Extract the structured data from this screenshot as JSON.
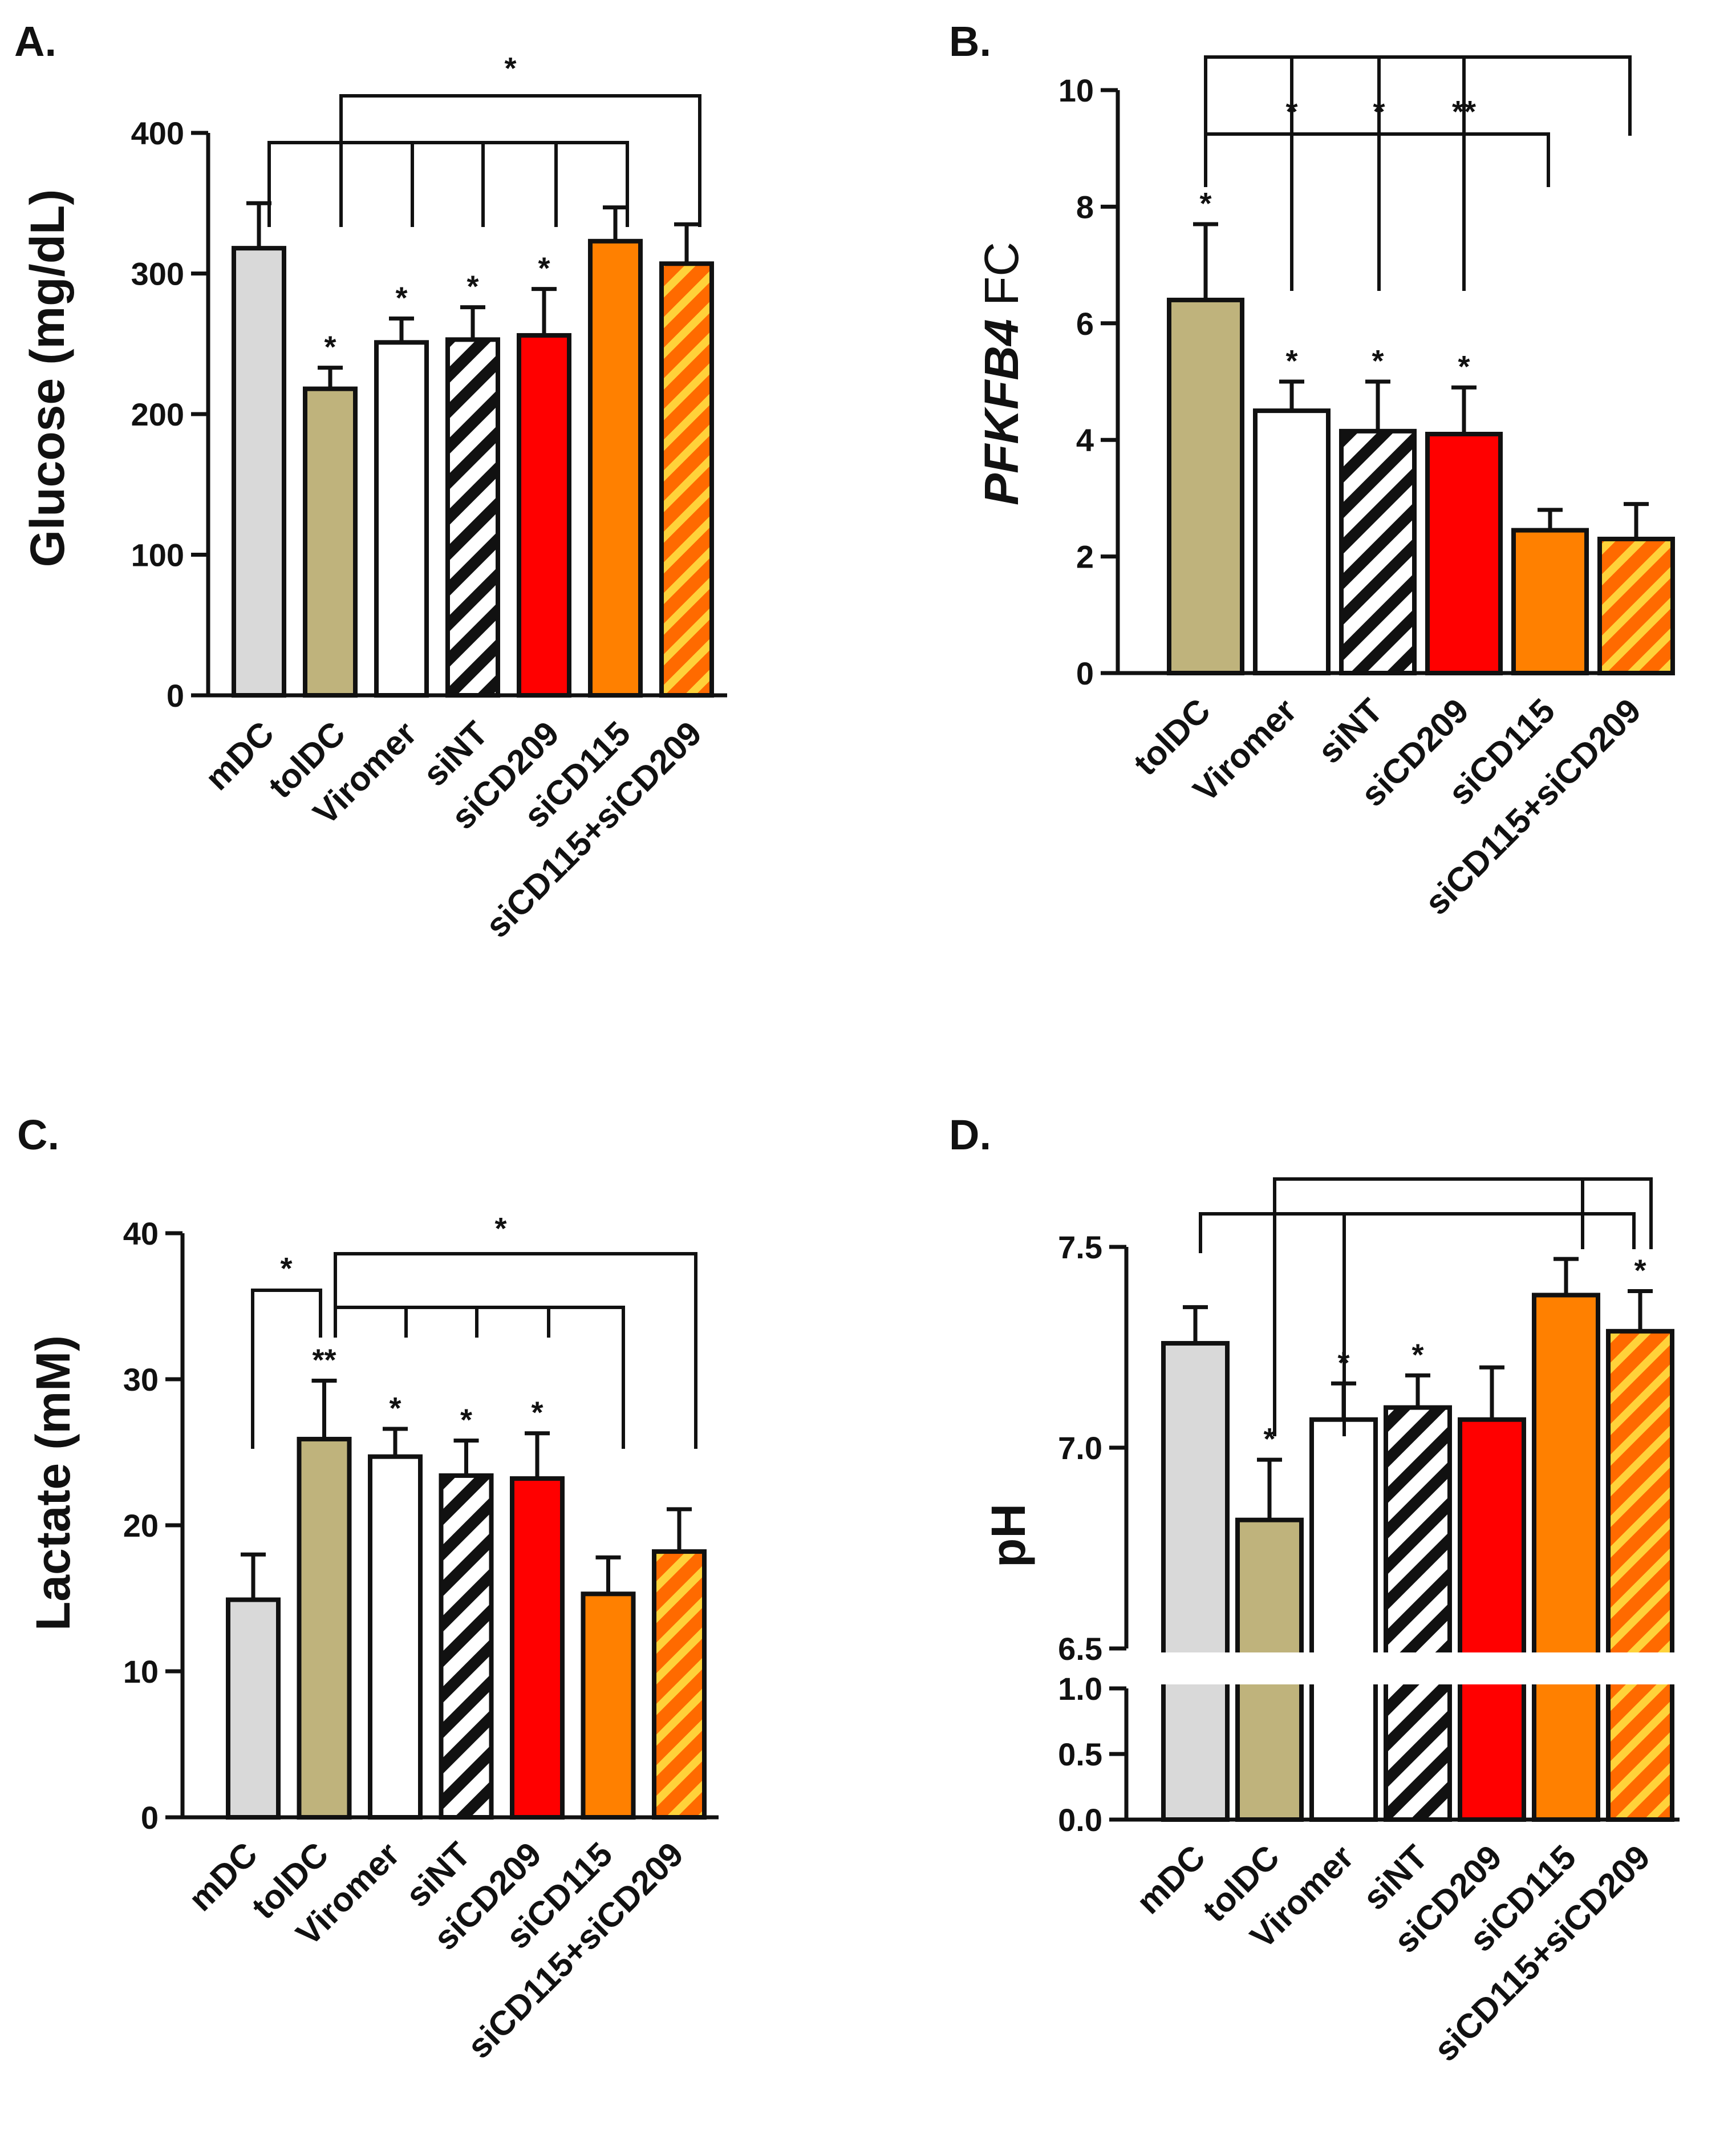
{
  "colors": {
    "gray": "#d9d9d9",
    "khaki": "#bfb37c",
    "white": "#ffffff",
    "red": "#ff0000",
    "orange": "#ff8000",
    "hatch_black": "#111111",
    "hatch_yellow": "#ffd23a"
  },
  "chart_data": [
    {
      "id": "A",
      "panel_label": "A.",
      "type": "bar",
      "ylabel": "Glucose (mg/dL)",
      "ylim": [
        0,
        400
      ],
      "yticks": [
        "0",
        "100",
        "200",
        "300",
        "400"
      ],
      "categories": [
        "mDC",
        "tolDC",
        "Viromer",
        "siNT",
        "siCD209",
        "siCD115",
        "siCD115+siCD209"
      ],
      "values": [
        318,
        218,
        251,
        253,
        256,
        323,
        307
      ],
      "errors": [
        32,
        15,
        17,
        23,
        33,
        24,
        28
      ],
      "stars": [
        "",
        "*",
        "*",
        "*",
        "*",
        "",
        ""
      ],
      "bracket_stars": [
        "",
        "*"
      ]
    },
    {
      "id": "B",
      "panel_label": "B.",
      "type": "bar",
      "ylabel_italic": "PFKFB4",
      "ylabel_rest": " FC",
      "ylim": [
        0,
        10
      ],
      "yticks": [
        "0",
        "2",
        "4",
        "6",
        "8",
        "10"
      ],
      "categories": [
        "tolDC",
        "Viromer",
        "siNT",
        "siCD209",
        "siCD115",
        "siCD115+siCD209"
      ],
      "values": [
        6.4,
        4.5,
        4.15,
        4.1,
        2.45,
        2.3
      ],
      "errors": [
        1.3,
        0.5,
        0.85,
        0.8,
        0.35,
        0.6
      ],
      "stars": [
        "*",
        "*",
        "*",
        "*",
        "",
        ""
      ],
      "bracket_stars": [
        "*",
        "*",
        "**"
      ]
    },
    {
      "id": "C",
      "panel_label": "C.",
      "type": "bar",
      "ylabel": "Lactate (mM)",
      "ylim": [
        0,
        40
      ],
      "yticks": [
        "0",
        "10",
        "20",
        "30",
        "40"
      ],
      "categories": [
        "mDC",
        "tolDC",
        "Viromer",
        "siNT",
        "siCD209",
        "siCD115",
        "siCD115+siCD209"
      ],
      "values": [
        14.9,
        25.9,
        24.7,
        23.4,
        23.2,
        15.3,
        18.2
      ],
      "errors": [
        3.1,
        4.0,
        1.9,
        2.4,
        3.1,
        2.5,
        2.9
      ],
      "stars": [
        "",
        "**",
        "*",
        "*",
        "*",
        "",
        ""
      ],
      "bracket_stars": [
        "*",
        "*"
      ]
    },
    {
      "id": "D",
      "panel_label": "D.",
      "type": "bar",
      "ylabel": "pH",
      "ylim": [
        0,
        7.5
      ],
      "y_axis_break": [
        1.0,
        6.5
      ],
      "yticks_lower": [
        "0.0",
        "0.5",
        "1.0"
      ],
      "yticks_upper": [
        "6.5",
        "7.0",
        "7.5"
      ],
      "categories": [
        "mDC",
        "tolDC",
        "Viromer",
        "siNT",
        "siCD209",
        "siCD115",
        "siCD115+siCD209"
      ],
      "values": [
        7.26,
        6.82,
        7.07,
        7.1,
        7.07,
        7.38,
        7.29
      ],
      "errors": [
        0.09,
        0.15,
        0.09,
        0.08,
        0.13,
        0.09,
        0.1
      ],
      "stars": [
        "",
        "*",
        "*",
        "*",
        "",
        "",
        "*"
      ]
    }
  ]
}
